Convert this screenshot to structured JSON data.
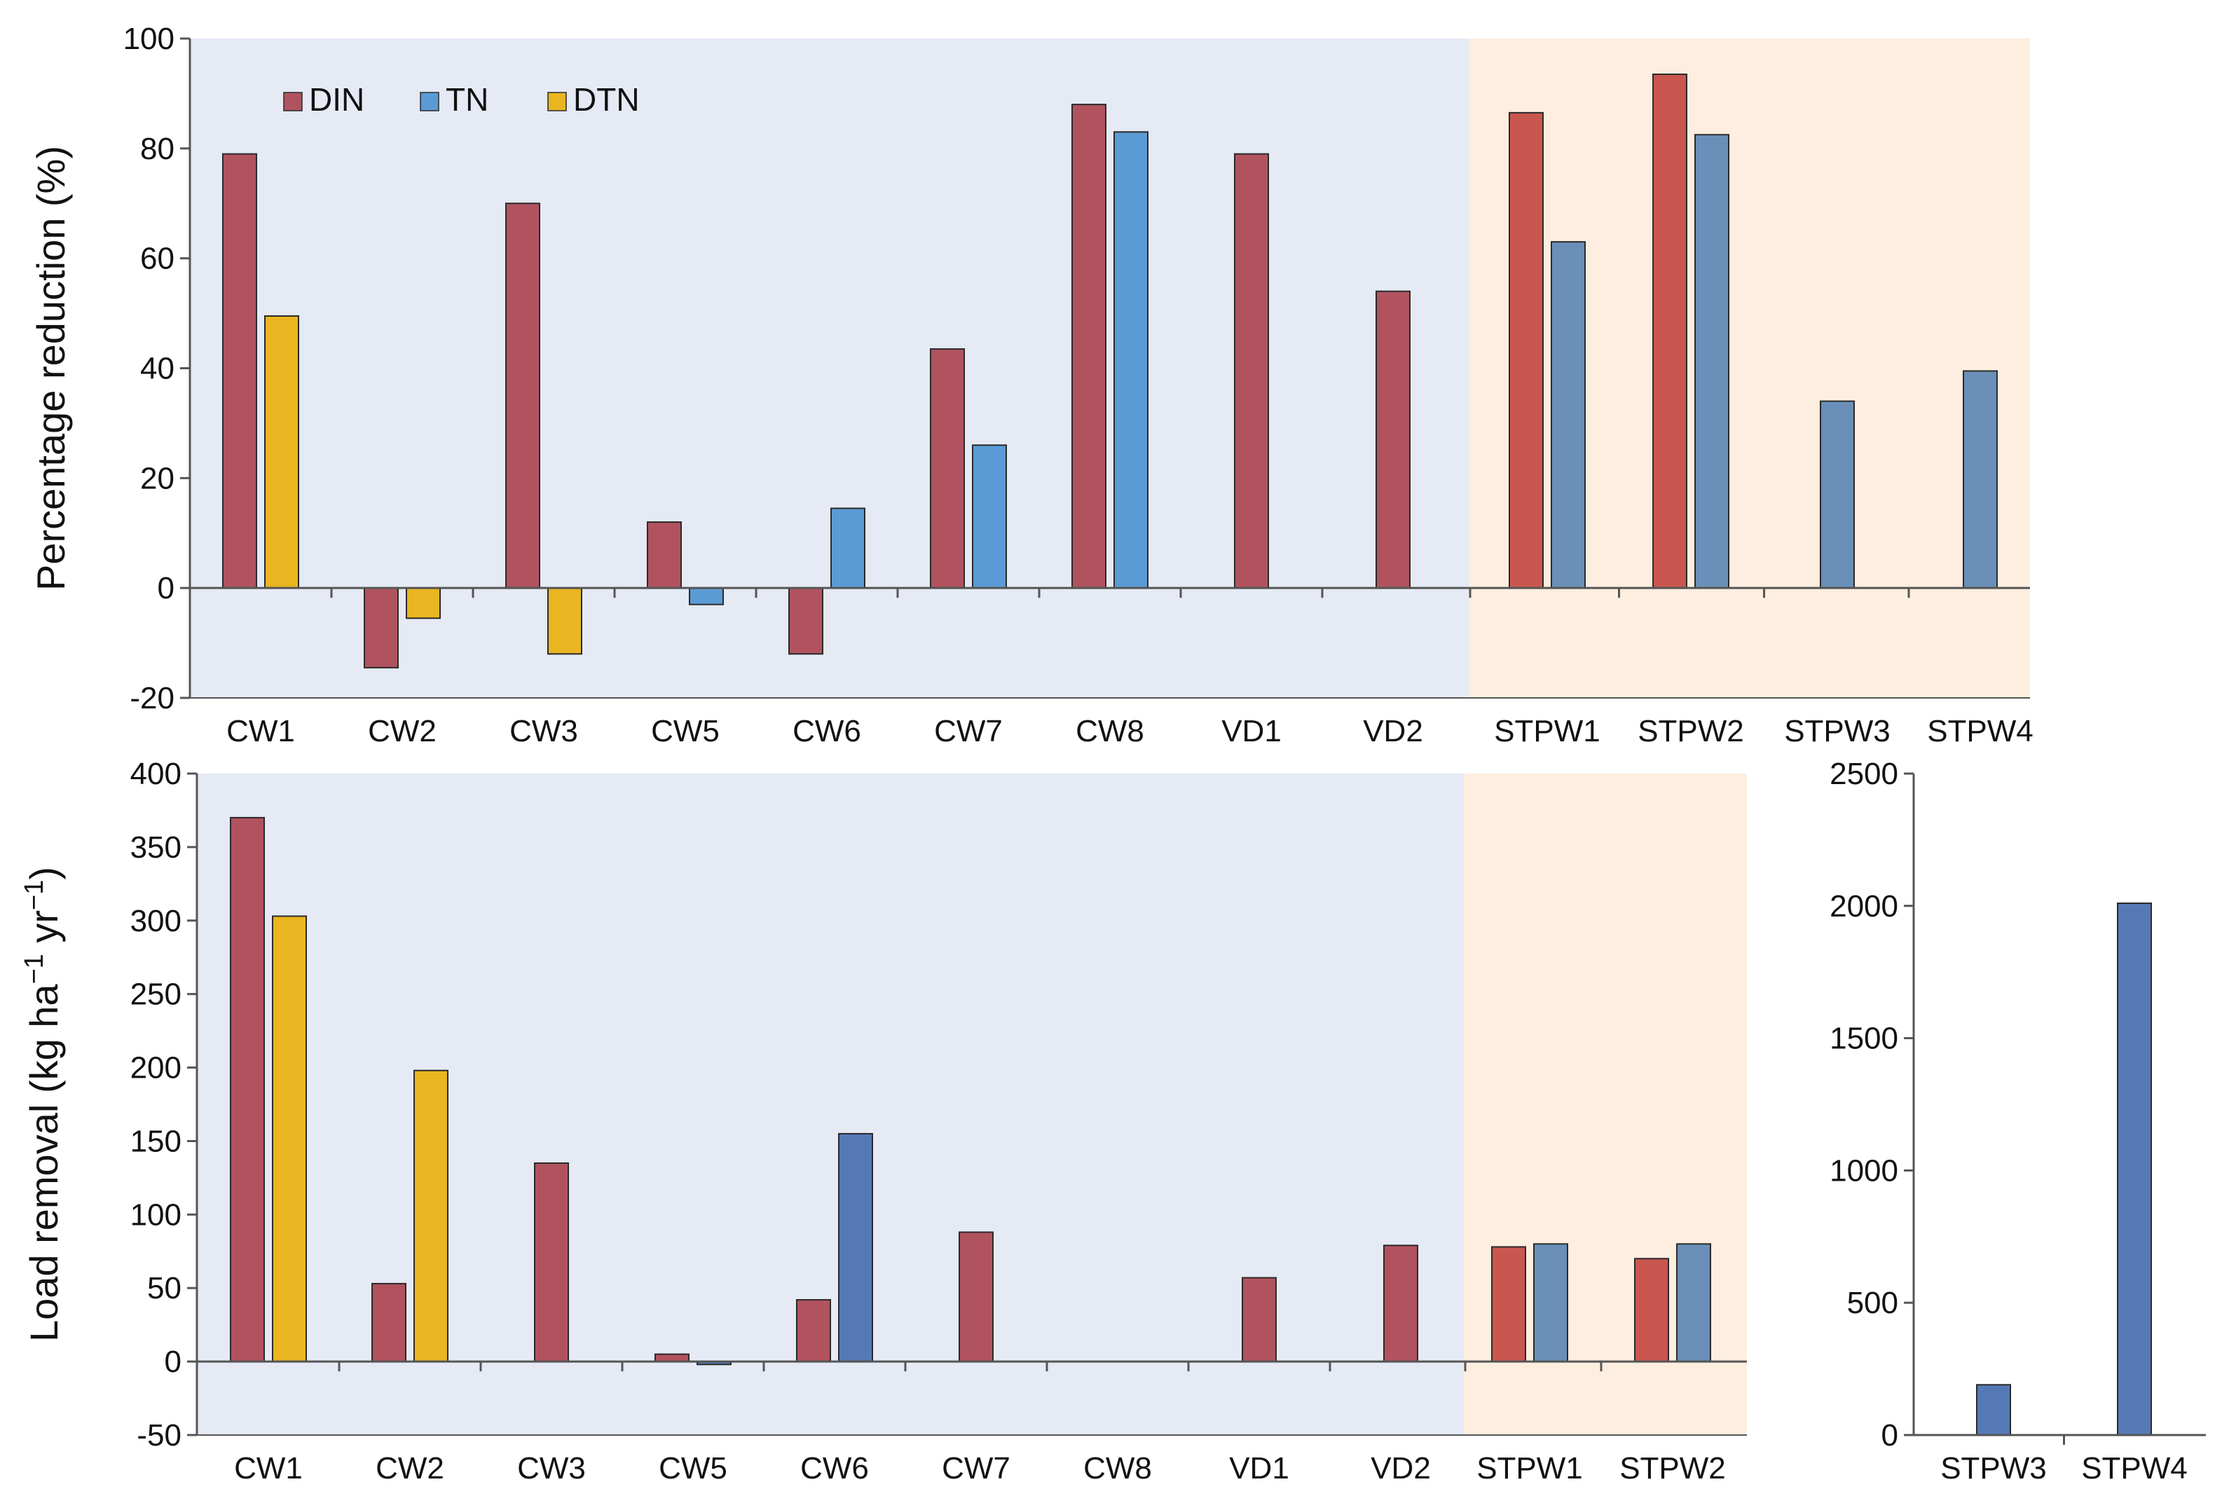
{
  "colors": {
    "cw_bg": "#e5eaf5",
    "stpw_bg": "#fdeee0",
    "DIN": "#b1535f",
    "DIN_stpw": "#c9574f",
    "TN": "#5b9bd5",
    "TN_stpw": "#6a8fb8",
    "TN_load": "#5579b5",
    "DTN": "#e9b520",
    "axis": "#555555",
    "bar_edge": "#2a2a2a"
  },
  "chart_data": [
    {
      "id": "top",
      "type": "bar",
      "title": "",
      "xlabel": "",
      "ylabel": "Percentage reduction (%)",
      "ylim": [
        -20,
        100
      ],
      "yticks": [
        -20,
        0,
        20,
        40,
        60,
        80,
        100
      ],
      "categories": [
        "CW1",
        "CW2",
        "CW3",
        "CW5",
        "CW6",
        "CW7",
        "CW8",
        "VD1",
        "VD2",
        "STPW1",
        "STPW2",
        "STPW3",
        "STPW4"
      ],
      "cw_group_count": 9,
      "legend": {
        "position": "top-left",
        "entries": [
          "DIN",
          "TN",
          "DTN"
        ]
      },
      "series": [
        {
          "name": "DIN",
          "values": [
            79,
            -14.5,
            70,
            12,
            -12,
            43.5,
            88,
            79,
            54,
            86.5,
            93.5,
            null,
            null
          ]
        },
        {
          "name": "TN",
          "values": [
            null,
            null,
            null,
            -3,
            14.5,
            26,
            83,
            null,
            null,
            63,
            82.5,
            34,
            39.5
          ]
        },
        {
          "name": "DTN",
          "values": [
            49.5,
            -5.5,
            -12,
            null,
            null,
            null,
            null,
            null,
            null,
            null,
            null,
            null,
            null
          ]
        }
      ]
    },
    {
      "id": "bottom",
      "type": "bar",
      "title": "",
      "xlabel": "",
      "ylabel": "Load removal (kg ha",
      "ylabel_sup1": "−1",
      "ylabel_mid": " yr",
      "ylabel_sup2": "−1",
      "ylabel_end": ")",
      "ylim": [
        -50,
        400
      ],
      "yticks": [
        -50,
        0,
        50,
        100,
        150,
        200,
        250,
        300,
        350,
        400
      ],
      "categories": [
        "CW1",
        "CW2",
        "CW3",
        "CW5",
        "CW6",
        "CW7",
        "CW8",
        "VD1",
        "VD2",
        "STPW1",
        "STPW2"
      ],
      "cw_group_count": 9,
      "series": [
        {
          "name": "DIN",
          "values": [
            370,
            53,
            135,
            5,
            42,
            88,
            null,
            57,
            79,
            78,
            70
          ]
        },
        {
          "name": "TN",
          "values": [
            null,
            null,
            null,
            -2,
            155,
            null,
            null,
            null,
            null,
            80,
            80
          ]
        },
        {
          "name": "DTN",
          "values": [
            303,
            198,
            null,
            null,
            null,
            null,
            null,
            null,
            null,
            null,
            null
          ]
        }
      ]
    },
    {
      "id": "inset",
      "type": "bar",
      "title": "",
      "xlabel": "",
      "ylabel": "",
      "ylim": [
        0,
        2500
      ],
      "yticks": [
        0,
        500,
        1000,
        1500,
        2000,
        2500
      ],
      "categories": [
        "STPW3",
        "STPW4"
      ],
      "series": [
        {
          "name": "TN",
          "values": [
            190,
            2010
          ]
        }
      ]
    }
  ]
}
